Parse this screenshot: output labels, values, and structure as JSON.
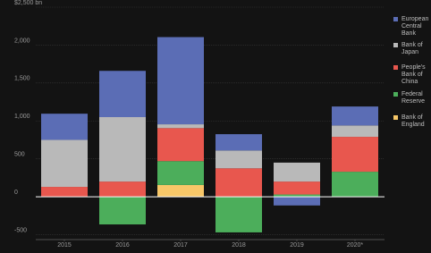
{
  "chart_data": {
    "type": "stacked-bar",
    "categories": [
      "2015",
      "2016",
      "2017",
      "2018",
      "2019",
      "2020*"
    ],
    "series": [
      {
        "name": "Bank of England",
        "color": "#f7c768",
        "values": [
          0,
          0,
          155,
          0,
          0,
          0
        ]
      },
      {
        "name": "Federal Reserve",
        "color": "#4cae5b",
        "values": [
          0,
          -365,
          315,
          -470,
          30,
          330
        ]
      },
      {
        "name": "People's Bank of China",
        "color": "#e8574e",
        "values": [
          130,
          200,
          435,
          375,
          170,
          460
        ]
      },
      {
        "name": "Bank of Japan",
        "color": "#b9b9b9",
        "values": [
          620,
          850,
          50,
          235,
          250,
          150
        ]
      },
      {
        "name": "European Central Bank",
        "color": "#5b6db5",
        "values": [
          345,
          610,
          1150,
          215,
          -115,
          250
        ]
      }
    ],
    "ylim": [
      -565,
      2500
    ],
    "yticks": [
      -500,
      0,
      500,
      {
        "value": 1000,
        "label": "1,000"
      },
      {
        "value": 1500,
        "label": "1,500"
      },
      {
        "value": 2000,
        "label": "2,000"
      },
      {
        "value": 2500,
        "label": "$2,500 bn"
      }
    ],
    "grid": true
  }
}
